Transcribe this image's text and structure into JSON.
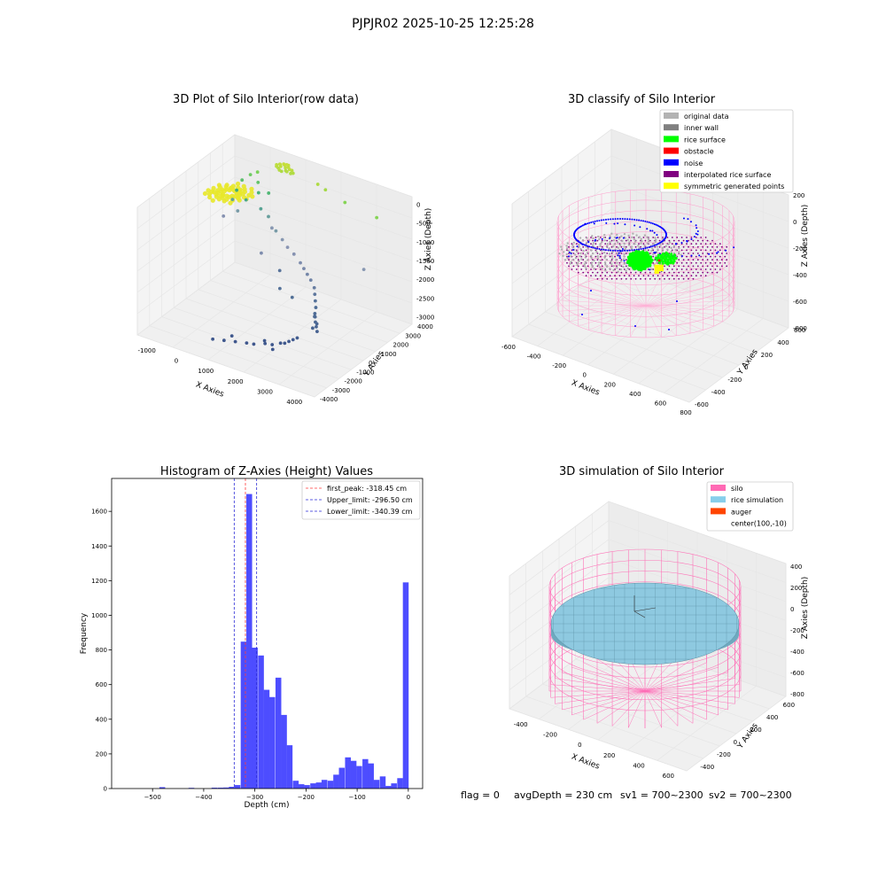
{
  "suptitle": "PJPJR02 2025-10-25 12:25:28",
  "colors": {
    "hist_bar": "#4d4dff",
    "peak_line": "#ff3b3b",
    "limit_line": "#2b2bd6",
    "rice_fill": "#8ec9e0",
    "silo_line": "#ff69b4",
    "grid": "#e6e6e6",
    "pane": "#f2f2f2"
  },
  "chart_data": [
    {
      "type": "scatter",
      "subtype": "3d",
      "title": "3D Plot of Silo Interior(row data)",
      "xlabel": "X Axies",
      "ylabel": "Y Axies",
      "zlabel": "Z Axies (Depth)",
      "xticks": [
        "-1000",
        "0",
        "1000",
        "2000",
        "3000",
        "4000"
      ],
      "yticks": [
        "-4000",
        "-3000",
        "-2000",
        "-1000",
        "0",
        "1000",
        "2000",
        "3000",
        "4000"
      ],
      "zticks": [
        "0",
        "-500",
        "-1000",
        "-1500",
        "-2000",
        "-2500",
        "-3000"
      ],
      "xlim": [
        -1500,
        4500
      ],
      "ylim": [
        -4000,
        4000
      ],
      "zlim": [
        -3200,
        200
      ],
      "colormap": "viridis",
      "points": [
        [
          200,
          3600,
          -30
        ],
        [
          260,
          3500,
          -40
        ],
        [
          330,
          3650,
          -20
        ],
        [
          400,
          3550,
          -50
        ],
        [
          140,
          3450,
          -60
        ],
        [
          480,
          3600,
          -30
        ],
        [
          300,
          3300,
          -80
        ],
        [
          220,
          3400,
          -70
        ],
        [
          560,
          3500,
          -40
        ],
        [
          380,
          3700,
          -10
        ],
        [
          450,
          3450,
          -90
        ],
        [
          170,
          3650,
          -40
        ],
        [
          620,
          3550,
          -60
        ],
        [
          350,
          3350,
          -110
        ],
        [
          520,
          3380,
          -80
        ],
        [
          280,
          3700,
          -20
        ],
        [
          640,
          3400,
          -100
        ],
        [
          420,
          3750,
          -30
        ],
        [
          100,
          3550,
          -50
        ],
        [
          700,
          3450,
          -90
        ],
        [
          1600,
          3300,
          -100
        ],
        [
          1900,
          3200,
          -140
        ],
        [
          2600,
          3100,
          -260
        ],
        [
          3800,
          2800,
          -260
        ],
        [
          -400,
          3200,
          -300
        ],
        [
          -600,
          3100,
          -400
        ],
        [
          -300,
          3000,
          -500
        ],
        [
          -800,
          2900,
          -550
        ],
        [
          -200,
          2800,
          -700
        ],
        [
          -900,
          2700,
          -800
        ],
        [
          100,
          2900,
          -650
        ],
        [
          -500,
          2500,
          -900
        ],
        [
          -1000,
          2600,
          -1050
        ],
        [
          0,
          2500,
          -1000
        ],
        [
          -700,
          2300,
          -1200
        ],
        [
          300,
          2400,
          -1100
        ],
        [
          -1100,
          2100,
          -1400
        ],
        [
          500,
          2200,
          -1300
        ],
        [
          3900,
          1500,
          -1300
        ],
        [
          800,
          1800,
          -1200
        ],
        [
          1100,
          1600,
          -1300
        ],
        [
          1400,
          1300,
          -1350
        ],
        [
          1700,
          1100,
          -1400
        ],
        [
          2000,
          900,
          -1500
        ],
        [
          2200,
          700,
          -1550
        ],
        [
          2400,
          500,
          -1600
        ],
        [
          2600,
          300,
          -1650
        ],
        [
          2800,
          100,
          -1750
        ],
        [
          2900,
          -100,
          -1850
        ],
        [
          3000,
          -300,
          -1950
        ],
        [
          3100,
          -500,
          -2050
        ],
        [
          3150,
          -700,
          -2150
        ],
        [
          3200,
          -800,
          -2200
        ],
        [
          3250,
          -900,
          -2300
        ],
        [
          3300,
          -950,
          -2400
        ],
        [
          3200,
          -1000,
          -2450
        ],
        [
          3280,
          -850,
          -2350
        ],
        [
          3120,
          -650,
          -2250
        ],
        [
          3350,
          -1000,
          -2500
        ],
        [
          2300,
          -500,
          -2000
        ],
        [
          1800,
          -300,
          -1950
        ],
        [
          800,
          600,
          -1500
        ],
        [
          1300,
          900,
          -1900
        ],
        [
          2700,
          -1400,
          -2800
        ],
        [
          2600,
          -1500,
          -2850
        ],
        [
          2500,
          -1600,
          -2900
        ],
        [
          2400,
          -1700,
          -2900
        ],
        [
          2200,
          -1900,
          -2950
        ],
        [
          2000,
          -2000,
          -2950
        ],
        [
          1700,
          -2200,
          -3000
        ],
        [
          1500,
          -2300,
          -3000
        ],
        [
          1200,
          -2500,
          -3000
        ],
        [
          900,
          -2700,
          -3000
        ],
        [
          600,
          -2900,
          -3000
        ],
        [
          1900,
          -1800,
          -2950
        ],
        [
          2800,
          -1300,
          -2750
        ],
        [
          2300,
          -2100,
          -3000
        ],
        [
          1000,
          -2300,
          -2950
        ]
      ]
    },
    {
      "type": "scatter",
      "subtype": "3d",
      "title": "3D classify of Silo Interior",
      "xlabel": "X Axies",
      "ylabel": "Y Axies",
      "zlabel": "Z Axies (Depth)",
      "xticks": [
        "-600",
        "-400",
        "-200",
        "0",
        "200",
        "400",
        "600",
        "800"
      ],
      "yticks": [
        "-600",
        "-400",
        "-200",
        "0",
        "200",
        "400",
        "600"
      ],
      "zticks": [
        "200",
        "0",
        "-200",
        "-400",
        "-600",
        "-800"
      ],
      "xlim": [
        -650,
        850
      ],
      "ylim": [
        -650,
        650
      ],
      "zlim": [
        -900,
        300
      ],
      "legend": [
        {
          "label": "original data",
          "color": "#b3b3b3"
        },
        {
          "label": "inner wall",
          "color": "#808080"
        },
        {
          "label": "rice surface",
          "color": "#00ff00"
        },
        {
          "label": "obstacle",
          "color": "#ff0000"
        },
        {
          "label": "noise",
          "color": "#0000ff"
        },
        {
          "label": "interpolated rice surface",
          "color": "#800080"
        },
        {
          "label": "symmetric generated points",
          "color": "#ffff00"
        }
      ],
      "legend_loc": "upper right",
      "silo_radius": 500,
      "silo_center": [
        100,
        -10
      ],
      "silo_zrange": [
        -900,
        100
      ]
    },
    {
      "type": "bar",
      "subtype": "histogram",
      "title": "Histogram of Z-Axies (Height) Values",
      "xlabel": "Depth (cm)",
      "ylabel": "Frequency",
      "xlim": [
        -580,
        28
      ],
      "ylim": [
        0,
        1790
      ],
      "xticks": [
        -500,
        -400,
        -300,
        -200,
        -100,
        0
      ],
      "yticks": [
        0,
        200,
        400,
        600,
        800,
        1000,
        1200,
        1400,
        1600
      ],
      "bin_width": 11.3,
      "bins": [
        [
          -481,
          8
        ],
        [
          -424,
          4
        ],
        [
          -379,
          5
        ],
        [
          -367,
          5
        ],
        [
          -356,
          6
        ],
        [
          -345,
          10
        ],
        [
          -334,
          20
        ],
        [
          -322,
          848
        ],
        [
          -311,
          1700
        ],
        [
          -300,
          813
        ],
        [
          -288,
          768
        ],
        [
          -277,
          570
        ],
        [
          -266,
          528
        ],
        [
          -254,
          640
        ],
        [
          -243,
          425
        ],
        [
          -232,
          250
        ],
        [
          -220,
          45
        ],
        [
          -209,
          25
        ],
        [
          -198,
          20
        ],
        [
          -186,
          30
        ],
        [
          -175,
          35
        ],
        [
          -164,
          50
        ],
        [
          -152,
          45
        ],
        [
          -141,
          80
        ],
        [
          -130,
          120
        ],
        [
          -118,
          180
        ],
        [
          -107,
          160
        ],
        [
          -96,
          130
        ],
        [
          -84,
          170
        ],
        [
          -73,
          145
        ],
        [
          -62,
          50
        ],
        [
          -50,
          70
        ],
        [
          -39,
          15
        ],
        [
          -28,
          30
        ],
        [
          -16,
          60
        ],
        [
          -5,
          1190
        ]
      ],
      "vlines": [
        {
          "label": "first_peak: -318.45 cm",
          "x": -318.45,
          "color": "#ff3b3b"
        },
        {
          "label": "Upper_limit: -296.50 cm",
          "x": -296.5,
          "color": "#2b2bd6"
        },
        {
          "label": "Lower_limit: -340.39 cm",
          "x": -340.39,
          "color": "#2b2bd6"
        }
      ],
      "legend_loc": "upper right"
    },
    {
      "type": "area",
      "subtype": "3d-surface",
      "title": "3D simulation of Silo Interior",
      "xlabel": "X Axies",
      "ylabel": "Y Axies",
      "zlabel": "Z Axies (Depth)",
      "xticks": [
        "-400",
        "-200",
        "0",
        "200",
        "400",
        "600"
      ],
      "yticks": [
        "-400",
        "-200",
        "0",
        "200",
        "400",
        "600"
      ],
      "zticks": [
        "400",
        "200",
        "0",
        "-200",
        "-400",
        "-600",
        "-800"
      ],
      "xlim": [
        -500,
        700
      ],
      "ylim": [
        -600,
        700
      ],
      "zlim": [
        -900,
        450
      ],
      "legend": [
        {
          "label": "silo",
          "color": "#ff69b4"
        },
        {
          "label": "rice simulation",
          "color": "#87ceeb"
        },
        {
          "label": "auger",
          "color": "#ff4500"
        },
        {
          "label": "center(100,-10)",
          "color": ""
        }
      ],
      "legend_loc": "upper right",
      "silo_radius": 500,
      "rice_surface_depth": -230
    }
  ],
  "footer": {
    "flag": "flag = 0",
    "avg_depth": "avgDepth = 230 cm",
    "sv1": "sv1 = 700~2300",
    "sv2": "sv2 = 700~2300"
  }
}
